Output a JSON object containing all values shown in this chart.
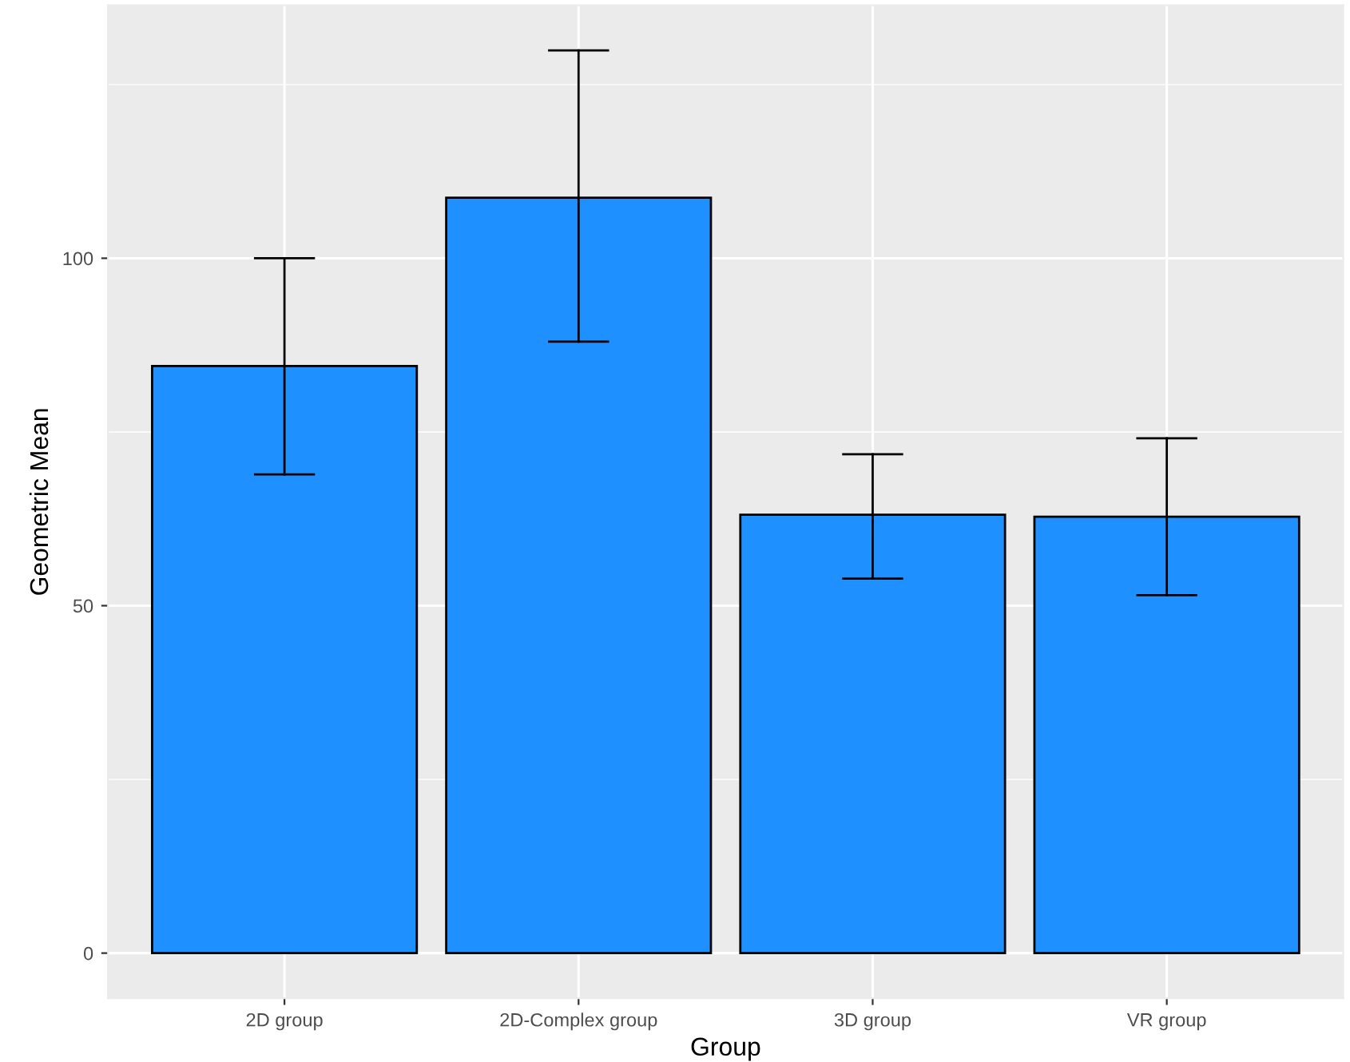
{
  "chart_data": {
    "type": "bar",
    "xlabel": "Group",
    "ylabel": "Geometric Mean",
    "categories": [
      "2D group",
      "2D-Complex group",
      "3D group",
      "VR group"
    ],
    "values": [
      84.5,
      108.7,
      63.1,
      62.8
    ],
    "errors": [
      [
        68.9,
        100
      ],
      [
        88.0,
        129.9
      ],
      [
        53.9,
        71.8
      ],
      [
        51.5,
        74.1
      ]
    ],
    "color": "#1e90ff",
    "ylim": [
      -6.5,
      136.4
    ],
    "yticks": [
      0,
      50,
      100
    ],
    "grid": true
  }
}
